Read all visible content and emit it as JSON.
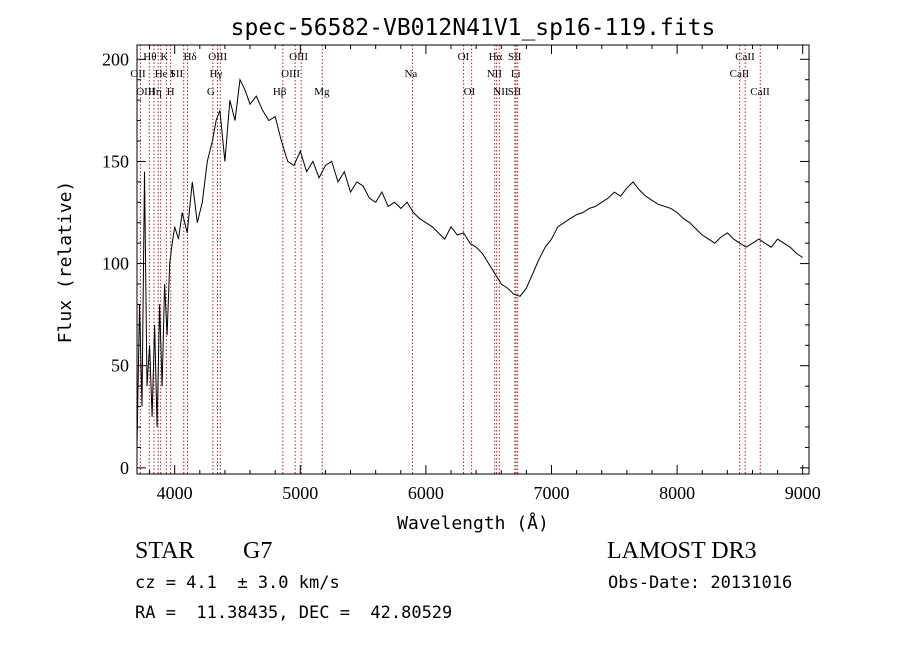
{
  "chart_data": {
    "type": "line",
    "title": "spec-56582-VB012N41V1_sp16-119.fits",
    "xlabel": "Wavelength (Å)",
    "ylabel": "Flux (relative)",
    "xlim": [
      3700,
      9050
    ],
    "ylim": [
      -3,
      207
    ],
    "x_ticks": [
      4000,
      5000,
      6000,
      7000,
      8000,
      9000
    ],
    "y_ticks": [
      0,
      50,
      100,
      150,
      200
    ],
    "grid": false,
    "line_color": "#000000",
    "marker_color": "#b22222",
    "series": [
      {
        "x": [
          3700,
          3720,
          3740,
          3760,
          3780,
          3800,
          3820,
          3840,
          3860,
          3880,
          3900,
          3920,
          3940,
          3960,
          3980,
          4000,
          4030,
          4060,
          4100,
          4140,
          4180,
          4220,
          4260,
          4300,
          4330,
          4360,
          4400,
          4440,
          4480,
          4520,
          4560,
          4600,
          4650,
          4700,
          4750,
          4800,
          4850,
          4900,
          4950,
          5000,
          5050,
          5100,
          5150,
          5200,
          5250,
          5300,
          5350,
          5400,
          5450,
          5500,
          5550,
          5600,
          5650,
          5700,
          5750,
          5800,
          5850,
          5900,
          5950,
          6000,
          6050,
          6100,
          6150,
          6200,
          6250,
          6300,
          6350,
          6400,
          6450,
          6500,
          6550,
          6600,
          6650,
          6700,
          6750,
          6800,
          6850,
          6900,
          6950,
          7000,
          7050,
          7100,
          7150,
          7200,
          7250,
          7300,
          7350,
          7400,
          7450,
          7500,
          7550,
          7600,
          7650,
          7700,
          7750,
          7800,
          7850,
          7900,
          7950,
          8000,
          8050,
          8100,
          8150,
          8200,
          8250,
          8300,
          8350,
          8400,
          8450,
          8500,
          8550,
          8600,
          8650,
          8700,
          8750,
          8800,
          8850,
          8900,
          8950,
          9000
        ],
        "y": [
          10,
          80,
          30,
          145,
          40,
          60,
          25,
          70,
          20,
          80,
          40,
          90,
          65,
          100,
          110,
          118,
          112,
          125,
          115,
          140,
          120,
          130,
          150,
          160,
          170,
          175,
          150,
          180,
          170,
          190,
          185,
          178,
          182,
          175,
          170,
          172,
          160,
          150,
          148,
          155,
          145,
          150,
          142,
          148,
          150,
          140,
          145,
          135,
          140,
          138,
          132,
          130,
          135,
          128,
          130,
          127,
          130,
          125,
          122,
          120,
          118,
          115,
          112,
          118,
          114,
          115,
          110,
          108,
          105,
          100,
          95,
          90,
          88,
          85,
          84,
          88,
          95,
          102,
          108,
          112,
          118,
          120,
          122,
          124,
          125,
          127,
          128,
          130,
          132,
          135,
          133,
          137,
          140,
          136,
          133,
          131,
          129,
          128,
          127,
          125,
          122,
          120,
          117,
          114,
          112,
          110,
          113,
          115,
          112,
          110,
          108,
          110,
          112,
          110,
          108,
          112,
          110,
          108,
          105,
          103
        ]
      }
    ],
    "lines": [
      {
        "label": "Hθ",
        "wavelength": 3798,
        "row": 1,
        "dx": -6
      },
      {
        "label": "OII",
        "wavelength": 3727,
        "row": 2,
        "dx": -10
      },
      {
        "label": "OIII",
        "wavelength": 3869,
        "row": 3,
        "dx": -22
      },
      {
        "label": "K",
        "wavelength": 3934,
        "row": 1,
        "dx": -6
      },
      {
        "label": "He",
        "wavelength": 3889,
        "row": 2,
        "dx": -6
      },
      {
        "label": "Hη",
        "wavelength": 3835,
        "row": 3,
        "dx": -6
      },
      {
        "label": "I",
        "wavelength": 3889,
        "row": 2,
        "dx": 10
      },
      {
        "label": "SII",
        "wavelength": 4072,
        "row": 2,
        "dx": -14
      },
      {
        "label": "H",
        "wavelength": 3968,
        "row": 3,
        "dx": -4
      },
      {
        "label": "Hδ",
        "wavelength": 4102,
        "row": 1,
        "dx": -4
      },
      {
        "label": "OIII",
        "wavelength": 4363,
        "row": 1,
        "dx": -12
      },
      {
        "label": "Hγ",
        "wavelength": 4341,
        "row": 2,
        "dx": -8
      },
      {
        "label": "G",
        "wavelength": 4304,
        "row": 3,
        "dx": -6
      },
      {
        "label": "OIII",
        "wavelength": 4959,
        "row": 1,
        "dx": -6
      },
      {
        "label": "OIII",
        "wavelength": 5007,
        "row": 2,
        "dx": -20
      },
      {
        "label": "Hβ",
        "wavelength": 4861,
        "row": 3,
        "dx": -10
      },
      {
        "label": "Mg",
        "wavelength": 5175,
        "row": 3,
        "dx": -8
      },
      {
        "label": "Na",
        "wavelength": 5893,
        "row": 2,
        "dx": -8
      },
      {
        "label": "OI",
        "wavelength": 6300,
        "row": 1,
        "dx": -6
      },
      {
        "label": "OI",
        "wavelength": 6364,
        "row": 3,
        "dx": -8
      },
      {
        "label": "Hα",
        "wavelength": 6563,
        "row": 1,
        "dx": -8
      },
      {
        "label": "NII",
        "wavelength": 6548,
        "row": 2,
        "dx": -8
      },
      {
        "label": "NII",
        "wavelength": 6584,
        "row": 3,
        "dx": -6
      },
      {
        "label": "SII",
        "wavelength": 6717,
        "row": 1,
        "dx": -8
      },
      {
        "label": "Li",
        "wavelength": 6708,
        "row": 2,
        "dx": -4
      },
      {
        "label": "SII",
        "wavelength": 6731,
        "row": 3,
        "dx": -10
      },
      {
        "label": "CaII",
        "wavelength": 8542,
        "row": 1,
        "dx": -10
      },
      {
        "label": "CaII",
        "wavelength": 8498,
        "row": 2,
        "dx": -10
      },
      {
        "label": "CaII",
        "wavelength": 8662,
        "row": 3,
        "dx": -10
      }
    ]
  },
  "footer": {
    "object_class": "STAR",
    "subclass": "G7",
    "survey": "LAMOST DR3",
    "redshift": "cz = 4.1  ± 3.0 km/s",
    "obs_date": "Obs-Date: 20131016",
    "coords": "RA =  11.38435, DEC =  42.80529"
  }
}
